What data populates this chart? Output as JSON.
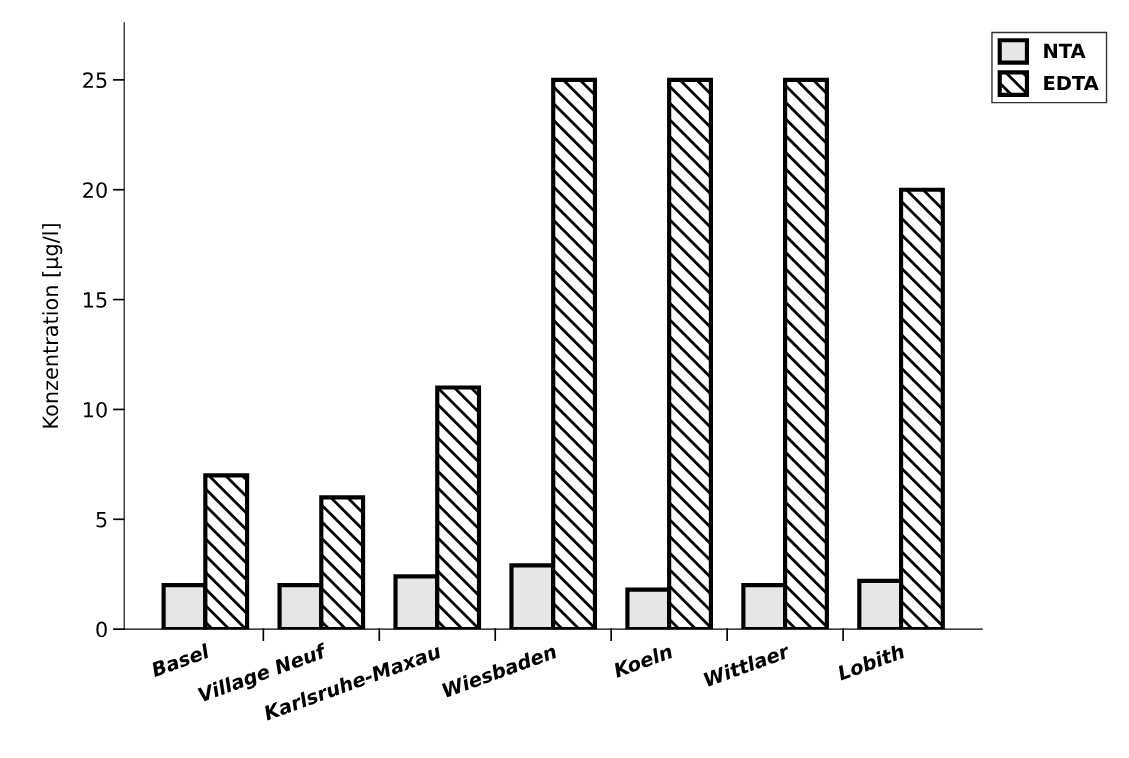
{
  "chart_data": {
    "type": "bar",
    "ylabel": "Konzentration [µg/l]",
    "categories": [
      "Basel",
      "Village Neuf",
      "Karlsruhe-Maxau",
      "Wiesbaden",
      "Koeln",
      "Wittlaer",
      "Lobith"
    ],
    "series": [
      {
        "name": "NTA",
        "color": "#e6e6e6",
        "values": [
          2,
          2,
          2.4,
          2.9,
          1.8,
          2,
          2.2
        ]
      },
      {
        "name": "EDTA",
        "color": "#000000",
        "values": [
          7,
          6,
          11,
          25,
          25,
          25,
          20
        ]
      }
    ],
    "ylim": [
      0,
      27.6
    ],
    "yticks": [
      0,
      5,
      10,
      15,
      20,
      25
    ],
    "grid": false,
    "legend": "top right"
  }
}
